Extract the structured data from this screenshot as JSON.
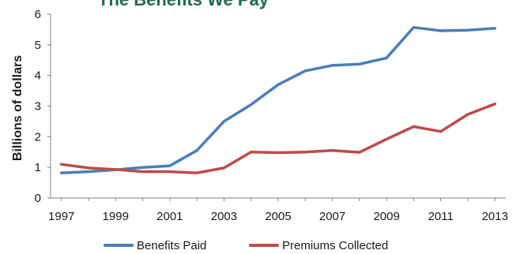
{
  "chart_data": {
    "type": "line",
    "title": "The Benefits We Pay",
    "ylabel": "Billions of dollars",
    "xlabel": "",
    "x": [
      1997,
      1998,
      1999,
      2000,
      2001,
      2002,
      2003,
      2004,
      2005,
      2006,
      2007,
      2008,
      2009,
      2010,
      2011,
      2012,
      2013
    ],
    "xticks": [
      "1997",
      "1999",
      "2001",
      "2003",
      "2005",
      "2007",
      "2009",
      "2011",
      "2013"
    ],
    "yticks": [
      "0",
      "1",
      "2",
      "3",
      "4",
      "5",
      "6"
    ],
    "ylim": [
      0,
      6
    ],
    "xlim": [
      1996.6,
      2013.4
    ],
    "grid": false,
    "legend_position": "bottom",
    "series": [
      {
        "name": "Benefits Paid",
        "color": "#4a7ebb",
        "values": [
          0.82,
          0.86,
          0.92,
          1.0,
          1.05,
          1.55,
          2.5,
          3.05,
          3.7,
          4.15,
          4.33,
          4.37,
          4.57,
          5.57,
          5.46,
          5.48,
          5.54
        ]
      },
      {
        "name": "Premiums Collected",
        "color": "#be4b48",
        "values": [
          1.1,
          0.98,
          0.93,
          0.86,
          0.86,
          0.82,
          0.98,
          1.5,
          1.48,
          1.5,
          1.55,
          1.49,
          1.92,
          2.33,
          2.17,
          2.73,
          3.07
        ]
      }
    ]
  }
}
